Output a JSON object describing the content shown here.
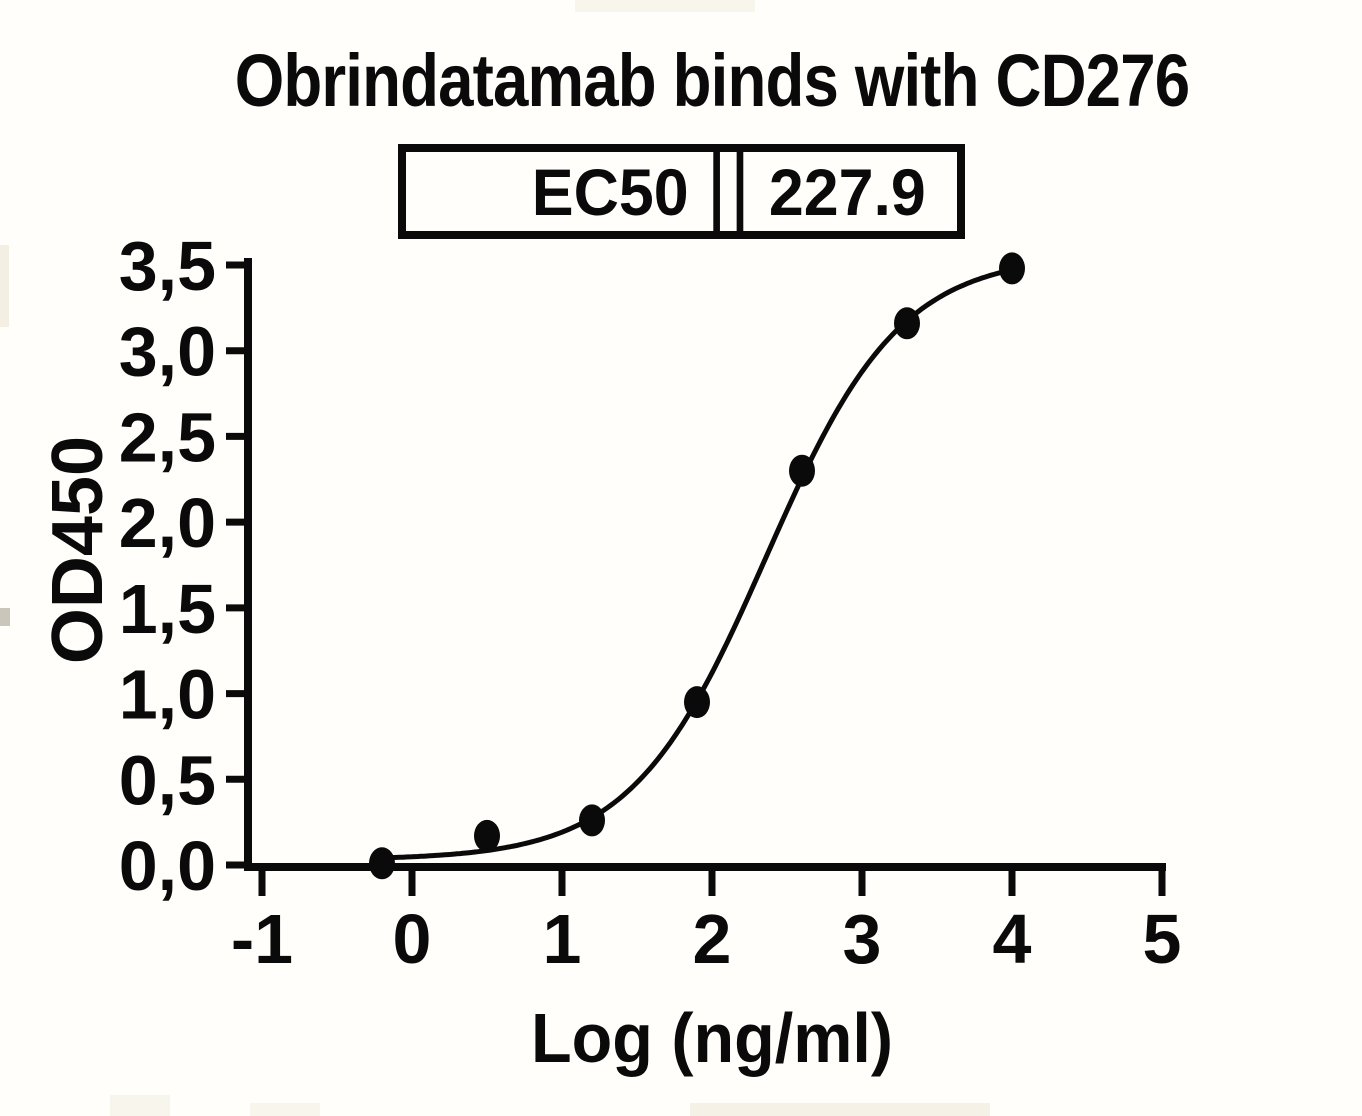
{
  "chart": {
    "title": "Obrindatamab binds with CD276",
    "ec50_label": "EC50",
    "ec50_value": "227.9",
    "xlabel": "Log (ng/ml)",
    "ylabel": "OD450"
  },
  "chart_data": {
    "type": "scatter",
    "title": "Obrindatamab binds with CD276",
    "xlabel": "Log (ng/ml)",
    "ylabel": "OD450",
    "xlim": [
      -1,
      5
    ],
    "ylim": [
      0,
      3.5
    ],
    "x_ticks": [
      -1,
      0,
      1,
      2,
      3,
      4,
      5
    ],
    "x_tick_labels": [
      "-1",
      "0",
      "1",
      "2",
      "3",
      "4",
      "5"
    ],
    "y_ticks": [
      0,
      0.5,
      1,
      1.5,
      2,
      2.5,
      3,
      3.5
    ],
    "y_tick_labels": [
      "0,0",
      "0,5",
      "1,0",
      "1,5",
      "2,0",
      "2,5",
      "3,0",
      "3,5"
    ],
    "ec50": 227.9,
    "series": [
      {
        "points": [
          {
            "x": -0.2,
            "y": 0.01
          },
          {
            "x": 0.5,
            "y": 0.17
          },
          {
            "x": 1.2,
            "y": 0.26
          },
          {
            "x": 1.9,
            "y": 0.95
          },
          {
            "x": 2.6,
            "y": 2.3
          },
          {
            "x": 3.3,
            "y": 3.16
          },
          {
            "x": 4.0,
            "y": 3.48
          }
        ]
      }
    ],
    "curve_fit": {
      "model": "four_parameter_logistic",
      "bottom": 0.03,
      "top": 3.56,
      "log_ec50": 2.36,
      "hill_slope": 0.97,
      "x_start": -0.2,
      "x_end": 4.0
    },
    "marker_color": "#0a0a0a",
    "line_color": "#0a0a0a",
    "grid": false,
    "legend": "none"
  },
  "colors": {
    "ink": "#0a0a0a",
    "background": "#fffefa"
  }
}
